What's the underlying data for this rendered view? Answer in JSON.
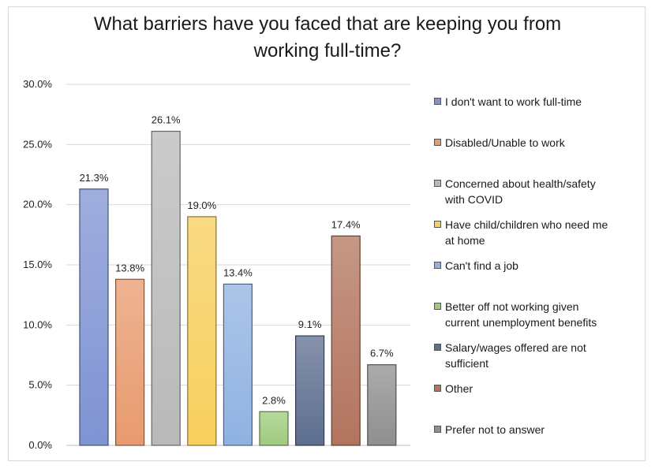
{
  "chart_data": {
    "type": "bar",
    "title_lines": [
      "What barriers have you faced that are keeping you from",
      "working full-time?"
    ],
    "title": "What barriers have you faced that are keeping you from working full-time?",
    "xlabel": "",
    "ylabel": "",
    "ylim": [
      0,
      30
    ],
    "yticks": [
      "0.0%",
      "5.0%",
      "10.0%",
      "15.0%",
      "20.0%",
      "25.0%",
      "30.0%"
    ],
    "grid": true,
    "legend_position": "right",
    "categories": [
      "I don't want to work full-time",
      "Disabled/Unable to work",
      "Concerned about health/safety with COVID",
      "Have child/children who need me at home",
      "Can't find a job",
      "Better off not working given current unemployment benefits",
      "Salary/wages offered are not sufficient",
      "Other",
      "Prefer not to answer"
    ],
    "values": [
      21.3,
      13.8,
      26.1,
      19.0,
      13.4,
      2.8,
      9.1,
      17.4,
      6.7
    ],
    "value_labels": [
      "21.3%",
      "13.8%",
      "26.1%",
      "19.0%",
      "13.4%",
      "2.8%",
      "9.1%",
      "17.4%",
      "6.7%"
    ],
    "colors": [
      "#7f93d3",
      "#e89a6e",
      "#b9b9b9",
      "#f7cf5c",
      "#8fb2e2",
      "#9fcb7d",
      "#5d6e8f",
      "#b3745e",
      "#8f8f8f"
    ],
    "legend": [
      [
        "I don't want to work full-time"
      ],
      [
        "Disabled/Unable to work"
      ],
      [
        "Concerned about health/safety",
        "with COVID"
      ],
      [
        "Have child/children who need me",
        "at home"
      ],
      [
        "Can't find a job"
      ],
      [
        "Better off not working given",
        "current unemployment benefits"
      ],
      [
        "Salary/wages offered are not",
        "sufficient"
      ],
      [
        "Other"
      ],
      [
        "Prefer not to answer"
      ]
    ]
  }
}
